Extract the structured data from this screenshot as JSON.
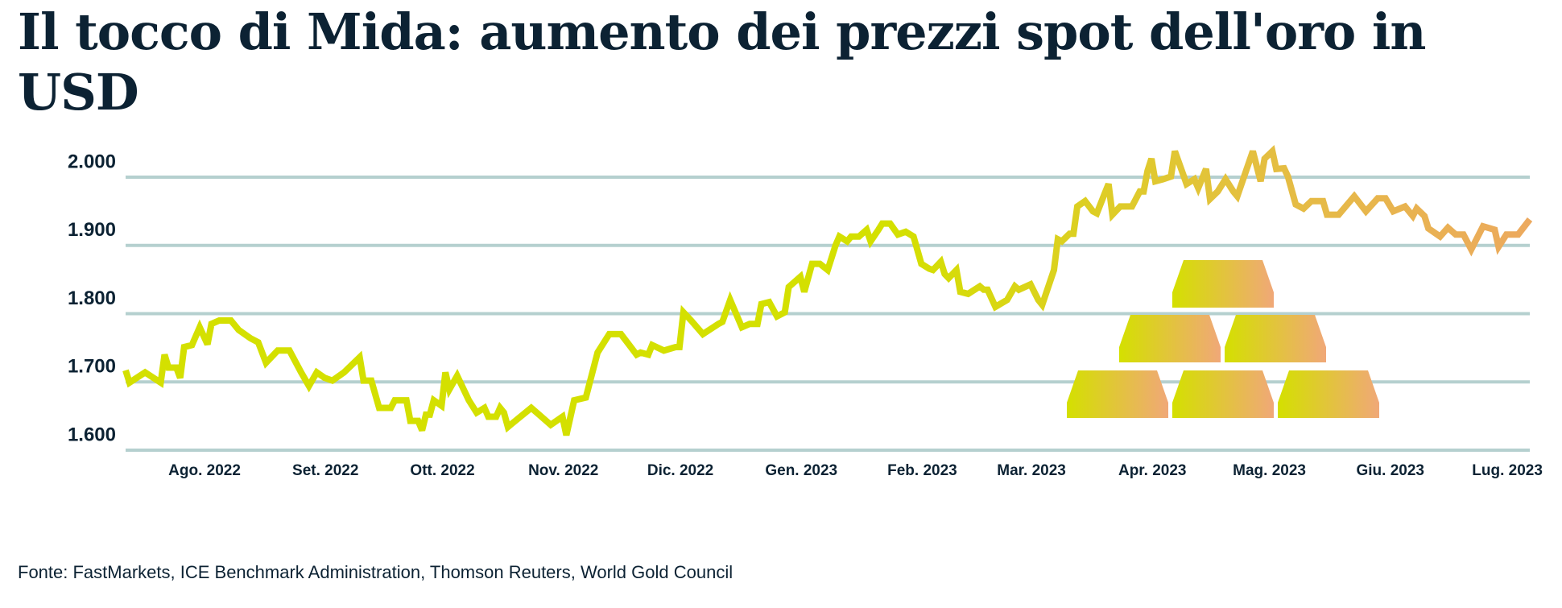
{
  "title": "Il tocco di Mida: aumento dei prezzi spot dell'oro in USD",
  "source": "Fonte: FastMarkets, ICE Benchmark Administration, Thomson Reuters, World Gold Council",
  "colors": {
    "grid": "#b5d0cf",
    "text": "#0c2233",
    "line_start": "#d4e000",
    "line_mid": "#e3c23c",
    "line_end": "#eca95e",
    "bar_start": "#d4e000",
    "bar_end": "#f0a878"
  },
  "icons": [
    "gold-bars-pyramid-icon"
  ],
  "chart_data": {
    "type": "line",
    "title": "Il tocco di Mida: aumento dei prezzi spot dell'oro in USD",
    "xlabel": "",
    "ylabel": "",
    "ylim": [
      1600,
      2000
    ],
    "xlim": [
      "2022-07-13",
      "2023-07-08"
    ],
    "grid": true,
    "yticks": [
      {
        "value": 2000,
        "label": "2.000"
      },
      {
        "value": 1900,
        "label": "1.900"
      },
      {
        "value": 1800,
        "label": "1.800"
      },
      {
        "value": 1700,
        "label": "1.700"
      },
      {
        "value": 1600,
        "label": "1.600"
      }
    ],
    "xticks": [
      {
        "date": "2022-08-01",
        "label": "Ago. 2022"
      },
      {
        "date": "2022-09-01",
        "label": "Set. 2022"
      },
      {
        "date": "2022-10-01",
        "label": "Ott. 2022"
      },
      {
        "date": "2022-11-01",
        "label": "Nov. 2022"
      },
      {
        "date": "2022-12-01",
        "label": "Dic. 2022"
      },
      {
        "date": "2023-01-01",
        "label": "Gen. 2023"
      },
      {
        "date": "2023-02-01",
        "label": "Feb. 2023"
      },
      {
        "date": "2023-03-01",
        "label": "Mar. 2023"
      },
      {
        "date": "2023-04-01",
        "label": "Apr. 2023"
      },
      {
        "date": "2023-05-01",
        "label": "Mag. 2023"
      },
      {
        "date": "2023-06-01",
        "label": "Giu. 2023"
      },
      {
        "date": "2023-07-01",
        "label": "Lug. 2023"
      }
    ],
    "series": [
      {
        "points": [
          [
            "2022-07-13",
            1717
          ],
          [
            "2022-07-14",
            1699
          ],
          [
            "2022-07-18",
            1714
          ],
          [
            "2022-07-22",
            1699
          ],
          [
            "2022-07-23",
            1740
          ],
          [
            "2022-07-24",
            1721
          ],
          [
            "2022-07-26",
            1721
          ],
          [
            "2022-07-27",
            1706
          ],
          [
            "2022-07-28",
            1751
          ],
          [
            "2022-07-30",
            1754
          ],
          [
            "2022-08-01",
            1780
          ],
          [
            "2022-08-03",
            1755
          ],
          [
            "2022-08-04",
            1785
          ],
          [
            "2022-08-06",
            1790
          ],
          [
            "2022-08-09",
            1790
          ],
          [
            "2022-08-11",
            1776
          ],
          [
            "2022-08-14",
            1764
          ],
          [
            "2022-08-16",
            1758
          ],
          [
            "2022-08-18",
            1728
          ],
          [
            "2022-08-21",
            1746
          ],
          [
            "2022-08-24",
            1746
          ],
          [
            "2022-08-27",
            1714
          ],
          [
            "2022-08-29",
            1694
          ],
          [
            "2022-08-31",
            1714
          ],
          [
            "2022-09-02",
            1706
          ],
          [
            "2022-09-04",
            1702
          ],
          [
            "2022-09-07",
            1714
          ],
          [
            "2022-09-11",
            1736
          ],
          [
            "2022-09-12",
            1702
          ],
          [
            "2022-09-14",
            1702
          ],
          [
            "2022-09-16",
            1662
          ],
          [
            "2022-09-19",
            1662
          ],
          [
            "2022-09-20",
            1673
          ],
          [
            "2022-09-23",
            1673
          ],
          [
            "2022-09-24",
            1643
          ],
          [
            "2022-09-26",
            1643
          ],
          [
            "2022-09-27",
            1629
          ],
          [
            "2022-09-28",
            1652
          ],
          [
            "2022-09-29",
            1652
          ],
          [
            "2022-09-30",
            1673
          ],
          [
            "2022-10-02",
            1665
          ],
          [
            "2022-10-03",
            1714
          ],
          [
            "2022-10-04",
            1689
          ],
          [
            "2022-10-06",
            1709
          ],
          [
            "2022-10-09",
            1673
          ],
          [
            "2022-10-11",
            1655
          ],
          [
            "2022-10-13",
            1662
          ],
          [
            "2022-10-14",
            1649
          ],
          [
            "2022-10-16",
            1649
          ],
          [
            "2022-10-17",
            1662
          ],
          [
            "2022-10-18",
            1655
          ],
          [
            "2022-10-19",
            1634
          ],
          [
            "2022-10-22",
            1648
          ],
          [
            "2022-10-25",
            1662
          ],
          [
            "2022-10-27",
            1652
          ],
          [
            "2022-10-30",
            1637
          ],
          [
            "2022-11-02",
            1649
          ],
          [
            "2022-11-03",
            1622
          ],
          [
            "2022-11-05",
            1673
          ],
          [
            "2022-11-08",
            1677
          ],
          [
            "2022-11-11",
            1743
          ],
          [
            "2022-11-14",
            1770
          ],
          [
            "2022-11-17",
            1770
          ],
          [
            "2022-11-19",
            1755
          ],
          [
            "2022-11-21",
            1740
          ],
          [
            "2022-11-22",
            1743
          ],
          [
            "2022-11-24",
            1740
          ],
          [
            "2022-11-25",
            1754
          ],
          [
            "2022-11-28",
            1746
          ],
          [
            "2022-12-01",
            1751
          ],
          [
            "2022-12-02",
            1751
          ],
          [
            "2022-12-03",
            1802
          ],
          [
            "2022-12-05",
            1790
          ],
          [
            "2022-12-08",
            1770
          ],
          [
            "2022-12-12",
            1785
          ],
          [
            "2022-12-13",
            1788
          ],
          [
            "2022-12-15",
            1820
          ],
          [
            "2022-12-18",
            1780
          ],
          [
            "2022-12-20",
            1785
          ],
          [
            "2022-12-22",
            1785
          ],
          [
            "2022-12-23",
            1814
          ],
          [
            "2022-12-25",
            1817
          ],
          [
            "2022-12-27",
            1796
          ],
          [
            "2022-12-29",
            1802
          ],
          [
            "2022-12-30",
            1839
          ],
          [
            "2023-01-02",
            1854
          ],
          [
            "2023-01-03",
            1832
          ],
          [
            "2023-01-05",
            1873
          ],
          [
            "2023-01-07",
            1873
          ],
          [
            "2023-01-09",
            1864
          ],
          [
            "2023-01-11",
            1900
          ],
          [
            "2023-01-12",
            1913
          ],
          [
            "2023-01-14",
            1906
          ],
          [
            "2023-01-15",
            1913
          ],
          [
            "2023-01-17",
            1913
          ],
          [
            "2023-01-19",
            1923
          ],
          [
            "2023-01-20",
            1906
          ],
          [
            "2023-01-22",
            1923
          ],
          [
            "2023-01-23",
            1932
          ],
          [
            "2023-01-25",
            1932
          ],
          [
            "2023-01-27",
            1916
          ],
          [
            "2023-01-29",
            1920
          ],
          [
            "2023-01-31",
            1913
          ],
          [
            "2023-02-02",
            1873
          ],
          [
            "2023-02-04",
            1866
          ],
          [
            "2023-02-05",
            1864
          ],
          [
            "2023-02-07",
            1876
          ],
          [
            "2023-02-08",
            1858
          ],
          [
            "2023-02-09",
            1852
          ],
          [
            "2023-02-11",
            1864
          ],
          [
            "2023-02-12",
            1832
          ],
          [
            "2023-02-14",
            1829
          ],
          [
            "2023-02-17",
            1840
          ],
          [
            "2023-02-18",
            1835
          ],
          [
            "2023-02-19",
            1835
          ],
          [
            "2023-02-21",
            1810
          ],
          [
            "2023-02-24",
            1820
          ],
          [
            "2023-02-26",
            1840
          ],
          [
            "2023-02-27",
            1835
          ],
          [
            "2023-03-02",
            1843
          ],
          [
            "2023-03-04",
            1820
          ],
          [
            "2023-03-05",
            1813
          ],
          [
            "2023-03-08",
            1864
          ],
          [
            "2023-03-09",
            1909
          ],
          [
            "2023-03-10",
            1906
          ],
          [
            "2023-03-12",
            1917
          ],
          [
            "2023-03-13",
            1917
          ],
          [
            "2023-03-14",
            1957
          ],
          [
            "2023-03-16",
            1965
          ],
          [
            "2023-03-18",
            1950
          ],
          [
            "2023-03-19",
            1947
          ],
          [
            "2023-03-21",
            1976
          ],
          [
            "2023-03-22",
            1990
          ],
          [
            "2023-03-23",
            1945
          ],
          [
            "2023-03-25",
            1957
          ],
          [
            "2023-03-28",
            1957
          ],
          [
            "2023-03-30",
            1979
          ],
          [
            "2023-03-31",
            1979
          ],
          [
            "2023-04-01",
            2009
          ],
          [
            "2023-04-02",
            2027
          ],
          [
            "2023-04-03",
            1994
          ],
          [
            "2023-04-05",
            1997
          ],
          [
            "2023-04-07",
            2001
          ],
          [
            "2023-04-08",
            2038
          ],
          [
            "2023-04-11",
            1990
          ],
          [
            "2023-04-13",
            1997
          ],
          [
            "2023-04-14",
            1984
          ],
          [
            "2023-04-16",
            2012
          ],
          [
            "2023-04-17",
            1968
          ],
          [
            "2023-04-19",
            1979
          ],
          [
            "2023-04-21",
            1997
          ],
          [
            "2023-04-23",
            1979
          ],
          [
            "2023-04-24",
            1972
          ],
          [
            "2023-04-28",
            2038
          ],
          [
            "2023-04-30",
            1994
          ],
          [
            "2023-05-01",
            2027
          ],
          [
            "2023-05-03",
            2038
          ],
          [
            "2023-05-04",
            2012
          ],
          [
            "2023-05-06",
            2013
          ],
          [
            "2023-05-07",
            2001
          ],
          [
            "2023-05-09",
            1960
          ],
          [
            "2023-05-11",
            1954
          ],
          [
            "2023-05-13",
            1965
          ],
          [
            "2023-05-16",
            1965
          ],
          [
            "2023-05-17",
            1945
          ],
          [
            "2023-05-20",
            1945
          ],
          [
            "2023-05-24",
            1972
          ],
          [
            "2023-05-27",
            1950
          ],
          [
            "2023-05-30",
            1969
          ],
          [
            "2023-06-01",
            1969
          ],
          [
            "2023-06-03",
            1950
          ],
          [
            "2023-06-06",
            1957
          ],
          [
            "2023-06-08",
            1943
          ],
          [
            "2023-06-09",
            1954
          ],
          [
            "2023-06-11",
            1943
          ],
          [
            "2023-06-12",
            1925
          ],
          [
            "2023-06-15",
            1913
          ],
          [
            "2023-06-17",
            1926
          ],
          [
            "2023-06-19",
            1916
          ],
          [
            "2023-06-21",
            1916
          ],
          [
            "2023-06-23",
            1894
          ],
          [
            "2023-06-26",
            1928
          ],
          [
            "2023-06-29",
            1923
          ],
          [
            "2023-06-30",
            1898
          ],
          [
            "2023-07-02",
            1916
          ],
          [
            "2023-07-05",
            1916
          ],
          [
            "2023-07-08",
            1938
          ]
        ]
      }
    ]
  }
}
